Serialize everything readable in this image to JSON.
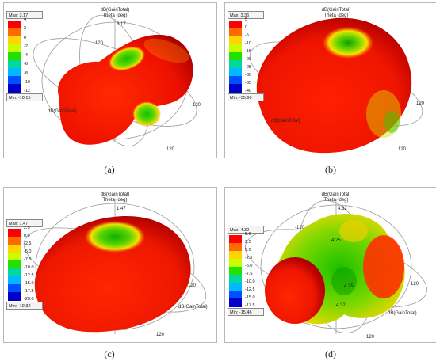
{
  "panels": [
    {
      "caption": "(a)",
      "max_label": "Max: 3.17",
      "min_label": "Min: -10.15",
      "ticks": [
        "4",
        "2",
        "0",
        "-2",
        "-4",
        "-6",
        "-8",
        "-10",
        "-12"
      ],
      "axis_top_1": "dB(GainTotal)",
      "axis_top_2": "Theta (deg)",
      "top_value": "3.17",
      "ring_label_1": "-120",
      "ring_label_2": "120",
      "ring_label_3": "120",
      "corner_label": "dB(GainTotal)"
    },
    {
      "caption": "(b)",
      "max_label": "Max: 3.36",
      "min_label": "Min: -35.60",
      "ticks": [
        "5",
        "0",
        "-5",
        "-10",
        "-15",
        "-20",
        "-25",
        "-30",
        "-35",
        "-40"
      ],
      "axis_top_1": "dB(GainTotal)",
      "axis_top_2": "Theta (deg)",
      "top_value": "",
      "ring_label_1": "",
      "ring_label_2": "120",
      "ring_label_3": "120",
      "corner_label": "dB(GainTotal)"
    },
    {
      "caption": "(c)",
      "max_label": "Max: 1.47",
      "min_label": "Min: -19.32",
      "ticks": [
        "2.5",
        "0.0",
        "-2.5",
        "-5.0",
        "-7.5",
        "-10.0",
        "-12.5",
        "-15.0",
        "-17.5",
        "-20.0"
      ],
      "axis_top_1": "dB(GainTotal)",
      "axis_top_2": "Theta (deg)",
      "top_value": "1.47",
      "ring_label_1": "",
      "ring_label_2": "120",
      "ring_label_3": "120",
      "corner_label": "dB(GainTotal)"
    },
    {
      "caption": "(d)",
      "max_label": "Max: 4.32",
      "min_label": "Min: -15.46",
      "ticks": [
        "5.0",
        "2.5",
        "0.0",
        "-2.5",
        "-5.0",
        "-7.5",
        "-10.0",
        "-12.5",
        "-15.0",
        "-17.5"
      ],
      "axis_top_1": "dB(GainTotal)",
      "axis_top_2": "Theta (deg)",
      "top_value": "4.32",
      "ring_label_1": "-120",
      "ring_label_2": "120",
      "ring_label_3": "120",
      "corner_label": "dB(GainTotal)",
      "inner_1": "4.25",
      "inner_2": "4.25",
      "inner_3": "4.32"
    }
  ],
  "colors": {
    "scale": [
      "#ff0000",
      "#ff6a00",
      "#ffd400",
      "#c8ff00",
      "#22e000",
      "#00d8a0",
      "#00b8ff",
      "#0050ff",
      "#0000c8"
    ]
  }
}
